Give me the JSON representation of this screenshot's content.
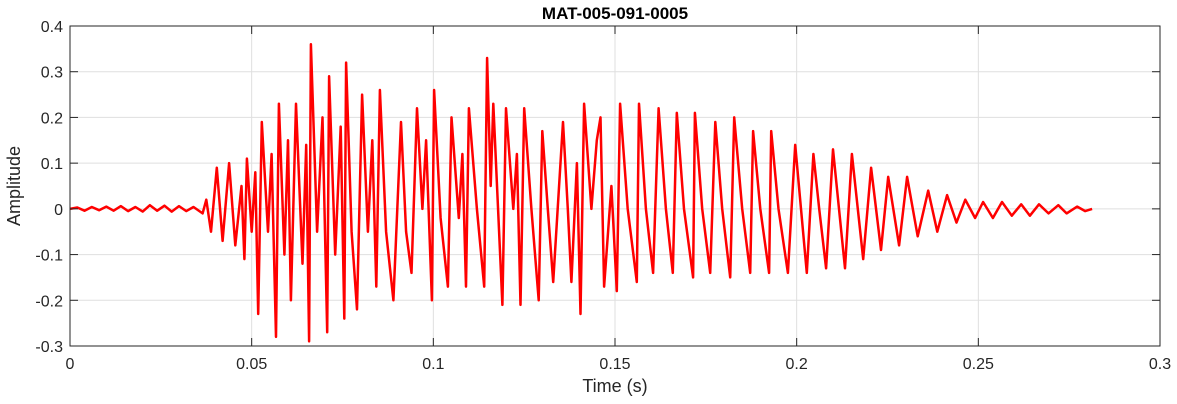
{
  "chart_data": {
    "type": "line",
    "title": "MAT-005-091-0005",
    "xlabel": "Time (s)",
    "ylabel": "Amplitude",
    "xlim": [
      0,
      0.3
    ],
    "ylim": [
      -0.3,
      0.4
    ],
    "xticks": [
      "0",
      "0.05",
      "0.1",
      "0.15",
      "0.2",
      "0.25",
      "0.3"
    ],
    "xtick_values": [
      0,
      0.05,
      0.1,
      0.15,
      0.2,
      0.25,
      0.3
    ],
    "yticks": [
      "-0.3",
      "-0.2",
      "-0.1",
      "0",
      "0.1",
      "0.2",
      "0.3",
      "0.4"
    ],
    "ytick_values": [
      -0.3,
      -0.2,
      -0.1,
      0,
      0.1,
      0.2,
      0.3,
      0.4
    ],
    "grid": true,
    "line_color": "#ff0000",
    "series": [
      {
        "points": [
          [
            0,
            0
          ],
          [
            0.002,
            0.003
          ],
          [
            0.004,
            -0.004
          ],
          [
            0.006,
            0.004
          ],
          [
            0.008,
            -0.003
          ],
          [
            0.01,
            0.005
          ],
          [
            0.012,
            -0.004
          ],
          [
            0.014,
            0.006
          ],
          [
            0.016,
            -0.005
          ],
          [
            0.018,
            0.004
          ],
          [
            0.02,
            -0.006
          ],
          [
            0.022,
            0.008
          ],
          [
            0.024,
            -0.004
          ],
          [
            0.026,
            0.007
          ],
          [
            0.028,
            -0.006
          ],
          [
            0.03,
            0.006
          ],
          [
            0.032,
            -0.005
          ],
          [
            0.034,
            0.004
          ],
          [
            0.0365,
            -0.01
          ],
          [
            0.0375,
            0.02
          ],
          [
            0.0388,
            -0.05
          ],
          [
            0.0404,
            0.09
          ],
          [
            0.042,
            -0.07
          ],
          [
            0.0438,
            0.1
          ],
          [
            0.0455,
            -0.08
          ],
          [
            0.0472,
            0.05
          ],
          [
            0.048,
            -0.11
          ],
          [
            0.0487,
            0.11
          ],
          [
            0.05,
            -0.05
          ],
          [
            0.051,
            0.08
          ],
          [
            0.0518,
            -0.23
          ],
          [
            0.0528,
            0.19
          ],
          [
            0.0545,
            -0.05
          ],
          [
            0.0555,
            0.12
          ],
          [
            0.0567,
            -0.28
          ],
          [
            0.0575,
            0.23
          ],
          [
            0.059,
            -0.1
          ],
          [
            0.06,
            0.15
          ],
          [
            0.0608,
            -0.2
          ],
          [
            0.0622,
            0.23
          ],
          [
            0.064,
            -0.12
          ],
          [
            0.065,
            0.14
          ],
          [
            0.0658,
            -0.29
          ],
          [
            0.0663,
            0.36
          ],
          [
            0.068,
            -0.05
          ],
          [
            0.0695,
            0.2
          ],
          [
            0.0708,
            -0.27
          ],
          [
            0.0713,
            0.29
          ],
          [
            0.073,
            -0.1
          ],
          [
            0.0745,
            0.18
          ],
          [
            0.0755,
            -0.24
          ],
          [
            0.076,
            0.32
          ],
          [
            0.0775,
            -0.05
          ],
          [
            0.079,
            -0.22
          ],
          [
            0.0804,
            0.25
          ],
          [
            0.082,
            -0.05
          ],
          [
            0.0832,
            0.15
          ],
          [
            0.0843,
            -0.17
          ],
          [
            0.0853,
            0.26
          ],
          [
            0.087,
            -0.05
          ],
          [
            0.089,
            -0.2
          ],
          [
            0.0911,
            0.19
          ],
          [
            0.0925,
            -0.05
          ],
          [
            0.094,
            -0.14
          ],
          [
            0.0955,
            0.22
          ],
          [
            0.097,
            0.0
          ],
          [
            0.098,
            0.15
          ],
          [
            0.0996,
            -0.2
          ],
          [
            0.1002,
            0.26
          ],
          [
            0.102,
            -0.02
          ],
          [
            0.104,
            -0.17
          ],
          [
            0.105,
            0.2
          ],
          [
            0.107,
            -0.02
          ],
          [
            0.108,
            0.12
          ],
          [
            0.109,
            -0.17
          ],
          [
            0.1098,
            0.22
          ],
          [
            0.112,
            0.0
          ],
          [
            0.114,
            -0.17
          ],
          [
            0.1148,
            0.33
          ],
          [
            0.1158,
            0.05
          ],
          [
            0.1165,
            0.23
          ],
          [
            0.119,
            -0.21
          ],
          [
            0.12,
            0.22
          ],
          [
            0.122,
            0.0
          ],
          [
            0.123,
            0.12
          ],
          [
            0.124,
            -0.21
          ],
          [
            0.125,
            0.22
          ],
          [
            0.127,
            0.0
          ],
          [
            0.129,
            -0.2
          ],
          [
            0.13,
            0.17
          ],
          [
            0.1315,
            0.0
          ],
          [
            0.133,
            -0.16
          ],
          [
            0.1357,
            0.19
          ],
          [
            0.137,
            0.0
          ],
          [
            0.138,
            -0.16
          ],
          [
            0.1395,
            0.1
          ],
          [
            0.1405,
            -0.23
          ],
          [
            0.1415,
            0.23
          ],
          [
            0.1435,
            0.0
          ],
          [
            0.145,
            0.15
          ],
          [
            0.146,
            0.2
          ],
          [
            0.147,
            -0.17
          ],
          [
            0.149,
            0.05
          ],
          [
            0.1505,
            -0.18
          ],
          [
            0.1514,
            0.23
          ],
          [
            0.1535,
            0.0
          ],
          [
            0.156,
            -0.16
          ],
          [
            0.1566,
            0.23
          ],
          [
            0.1585,
            0.0
          ],
          [
            0.1605,
            -0.14
          ],
          [
            0.162,
            0.22
          ],
          [
            0.164,
            0.0
          ],
          [
            0.1659,
            -0.14
          ],
          [
            0.167,
            0.21
          ],
          [
            0.169,
            0.0
          ],
          [
            0.1715,
            -0.15
          ],
          [
            0.172,
            0.21
          ],
          [
            0.174,
            0.0
          ],
          [
            0.1762,
            -0.14
          ],
          [
            0.1776,
            0.19
          ],
          [
            0.1795,
            0.0
          ],
          [
            0.1817,
            -0.15
          ],
          [
            0.1828,
            0.2
          ],
          [
            0.185,
            0.0
          ],
          [
            0.1872,
            -0.14
          ],
          [
            0.188,
            0.17
          ],
          [
            0.19,
            0.0
          ],
          [
            0.1924,
            -0.14
          ],
          [
            0.193,
            0.17
          ],
          [
            0.195,
            0.0
          ],
          [
            0.1976,
            -0.14
          ],
          [
            0.1996,
            0.14
          ],
          [
            0.2012,
            0.0
          ],
          [
            0.2028,
            -0.14
          ],
          [
            0.2046,
            0.12
          ],
          [
            0.2062,
            0.0
          ],
          [
            0.2081,
            -0.13
          ],
          [
            0.21,
            0.13
          ],
          [
            0.2133,
            -0.13
          ],
          [
            0.2152,
            0.12
          ],
          [
            0.2183,
            -0.11
          ],
          [
            0.2205,
            0.09
          ],
          [
            0.2232,
            -0.09
          ],
          [
            0.2252,
            0.07
          ],
          [
            0.2282,
            -0.08
          ],
          [
            0.2304,
            0.07
          ],
          [
            0.2333,
            -0.06
          ],
          [
            0.2362,
            0.04
          ],
          [
            0.2387,
            -0.05
          ],
          [
            0.2414,
            0.03
          ],
          [
            0.244,
            -0.03
          ],
          [
            0.2464,
            0.02
          ],
          [
            0.2491,
            -0.02
          ],
          [
            0.2513,
            0.015
          ],
          [
            0.254,
            -0.02
          ],
          [
            0.2565,
            0.015
          ],
          [
            0.2592,
            -0.015
          ],
          [
            0.2618,
            0.01
          ],
          [
            0.2642,
            -0.015
          ],
          [
            0.2667,
            0.01
          ],
          [
            0.2693,
            -0.01
          ],
          [
            0.272,
            0.008
          ],
          [
            0.2743,
            -0.01
          ],
          [
            0.2772,
            0.005
          ],
          [
            0.2794,
            -0.005
          ],
          [
            0.2813,
            0.0
          ]
        ]
      }
    ]
  }
}
